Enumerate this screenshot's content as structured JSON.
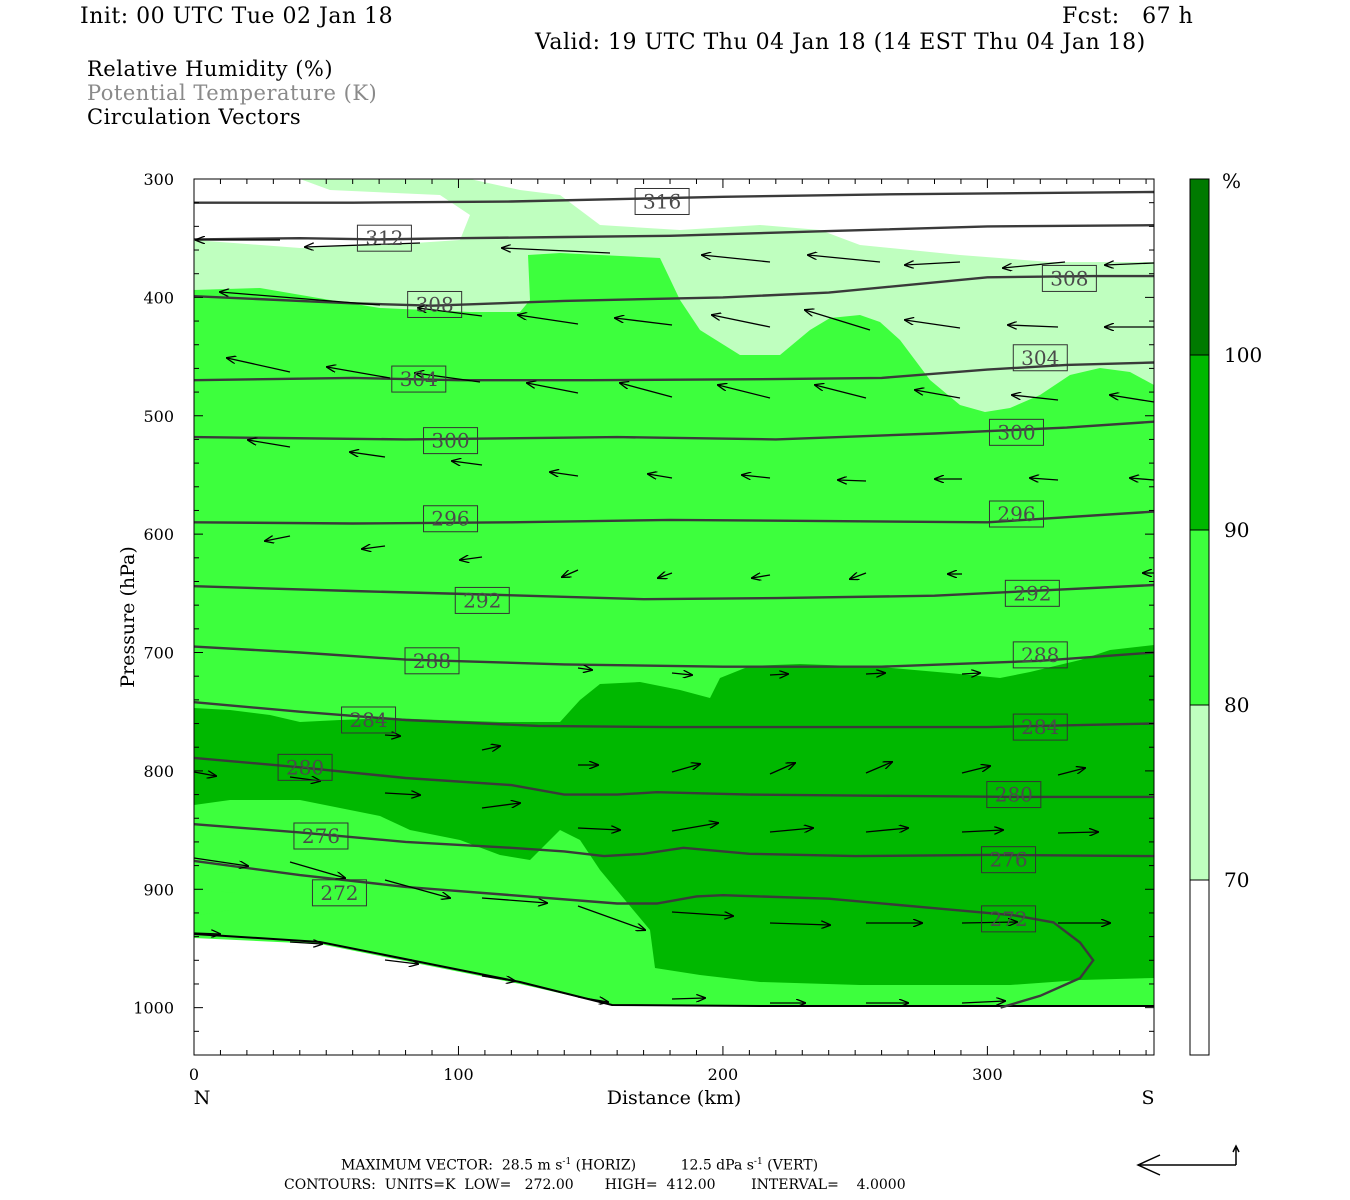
{
  "header": {
    "init": "Init: 00 UTC Tue 02 Jan 18",
    "fcst": "Fcst:   67 h",
    "valid": "Valid: 19 UTC Thu 04 Jan 18 (14 EST Thu 04 Jan 18)"
  },
  "fields": {
    "rh": "Relative Humidity (%)",
    "theta": "Potential Temperature (K)",
    "vectors": "Circulation Vectors"
  },
  "colors": {
    "rh_70_80": "#bfffbf",
    "rh_80_90": "#3dff3d",
    "rh_90_100": "#00b800",
    "rh_100": "#007a00",
    "theta_contour": "#3a3a3a",
    "theta_label_text": "#4a4a4a"
  },
  "footer": {
    "line1_prefix": "MAXIMUM VECTOR:  28.5 m s",
    "line1_exp": "-1",
    "line1_mid": " (HORIZ)          12.5 dPa s",
    "line1_exp2": "-1",
    "line1_suffix": " (VERT)",
    "line2": "CONTOURS:  UNITS=K  LOW=   272.00       HIGH=  412.00        INTERVAL=    4.0000"
  },
  "chart_data": {
    "type": "cross-section",
    "xlabel": "Distance (km)",
    "ylabel": "Pressure (hPa)",
    "xlim": [
      0,
      363
    ],
    "ylim": [
      1040,
      300
    ],
    "x_ticks": [
      0,
      100,
      200,
      300
    ],
    "y_ticks": [
      300,
      400,
      500,
      600,
      700,
      800,
      900,
      1000
    ],
    "endpoints": {
      "left": "N",
      "right": "S"
    },
    "colorbar": {
      "unit": "%",
      "levels": [
        70,
        80,
        90,
        100
      ],
      "labels": [
        "70",
        "80",
        "90",
        "100"
      ]
    },
    "theta_contours": [
      {
        "value": 272,
        "label": "272",
        "points": [
          [
            0,
            876
          ],
          [
            40,
            888
          ],
          [
            80,
            898
          ],
          [
            120,
            905
          ],
          [
            160,
            912
          ],
          [
            175,
            912
          ],
          [
            190,
            906
          ],
          [
            200,
            905
          ],
          [
            240,
            908
          ],
          [
            280,
            916
          ],
          [
            310,
            922
          ],
          [
            325,
            928
          ],
          [
            335,
            945
          ],
          [
            340,
            960
          ],
          [
            335,
            975
          ],
          [
            320,
            990
          ],
          [
            305,
            1000
          ]
        ],
        "labels_at": [
          [
            55,
            903
          ],
          [
            308,
            925
          ]
        ]
      },
      {
        "value": 276,
        "label": "276",
        "points": [
          [
            0,
            845
          ],
          [
            40,
            852
          ],
          [
            80,
            860
          ],
          [
            120,
            865
          ],
          [
            140,
            868
          ],
          [
            155,
            872
          ],
          [
            170,
            870
          ],
          [
            185,
            865
          ],
          [
            210,
            870
          ],
          [
            250,
            872
          ],
          [
            300,
            871
          ],
          [
            363,
            872
          ]
        ],
        "labels_at": [
          [
            48,
            855
          ],
          [
            308,
            875
          ]
        ]
      },
      {
        "value": 280,
        "label": "280",
        "points": [
          [
            0,
            789
          ],
          [
            40,
            797
          ],
          [
            80,
            806
          ],
          [
            120,
            812
          ],
          [
            140,
            820
          ],
          [
            160,
            820
          ],
          [
            175,
            818
          ],
          [
            210,
            820
          ],
          [
            260,
            821
          ],
          [
            310,
            822
          ],
          [
            363,
            822
          ]
        ],
        "labels_at": [
          [
            42,
            797
          ],
          [
            310,
            820
          ]
        ]
      },
      {
        "value": 284,
        "label": "284",
        "points": [
          [
            0,
            742
          ],
          [
            40,
            750
          ],
          [
            80,
            757
          ],
          [
            130,
            762
          ],
          [
            180,
            763
          ],
          [
            240,
            763
          ],
          [
            300,
            763
          ],
          [
            363,
            760
          ]
        ],
        "labels_at": [
          [
            66,
            757
          ],
          [
            320,
            763
          ]
        ]
      },
      {
        "value": 288,
        "label": "288",
        "points": [
          [
            0,
            695
          ],
          [
            40,
            700
          ],
          [
            80,
            706
          ],
          [
            140,
            710
          ],
          [
            200,
            712
          ],
          [
            260,
            712
          ],
          [
            320,
            707
          ],
          [
            363,
            700
          ]
        ],
        "labels_at": [
          [
            90,
            707
          ],
          [
            320,
            702
          ]
        ]
      },
      {
        "value": 292,
        "label": "292",
        "points": [
          [
            0,
            644
          ],
          [
            60,
            648
          ],
          [
            110,
            651
          ],
          [
            170,
            655
          ],
          [
            220,
            654
          ],
          [
            280,
            652
          ],
          [
            363,
            643
          ]
        ],
        "labels_at": [
          [
            109,
            656
          ],
          [
            317,
            650
          ]
        ]
      },
      {
        "value": 296,
        "label": "296",
        "points": [
          [
            0,
            590
          ],
          [
            60,
            591
          ],
          [
            120,
            590
          ],
          [
            180,
            588
          ],
          [
            240,
            589
          ],
          [
            300,
            590
          ],
          [
            363,
            581
          ]
        ],
        "labels_at": [
          [
            97,
            587
          ],
          [
            311,
            583
          ]
        ]
      },
      {
        "value": 300,
        "label": "300",
        "points": [
          [
            0,
            518
          ],
          [
            80,
            520
          ],
          [
            160,
            518
          ],
          [
            220,
            520
          ],
          [
            280,
            515
          ],
          [
            330,
            510
          ],
          [
            363,
            505
          ]
        ],
        "labels_at": [
          [
            97,
            521
          ],
          [
            311,
            514
          ]
        ]
      },
      {
        "value": 304,
        "label": "304",
        "points": [
          [
            0,
            470
          ],
          [
            60,
            468
          ],
          [
            100,
            470
          ],
          [
            150,
            470
          ],
          [
            220,
            469
          ],
          [
            260,
            468
          ],
          [
            300,
            461
          ],
          [
            330,
            457
          ],
          [
            363,
            455
          ]
        ],
        "labels_at": [
          [
            85,
            469
          ],
          [
            320,
            451
          ]
        ]
      },
      {
        "value": 308,
        "label": "308",
        "points": [
          [
            0,
            399
          ],
          [
            60,
            405
          ],
          [
            90,
            407
          ],
          [
            140,
            403
          ],
          [
            200,
            400
          ],
          [
            240,
            396
          ],
          [
            300,
            383
          ],
          [
            340,
            382
          ],
          [
            363,
            382
          ]
        ],
        "labels_at": [
          [
            91,
            406
          ],
          [
            331,
            384
          ]
        ]
      },
      {
        "value": 312,
        "label": "312",
        "points": [
          [
            0,
            351
          ],
          [
            40,
            350
          ],
          [
            70,
            351
          ],
          [
            100,
            350
          ],
          [
            140,
            349
          ],
          [
            180,
            348
          ],
          [
            240,
            344
          ],
          [
            300,
            340
          ],
          [
            363,
            339
          ]
        ],
        "labels_at": [
          [
            72,
            350
          ]
        ]
      },
      {
        "value": 316,
        "label": "316",
        "points": [
          [
            0,
            320
          ],
          [
            60,
            320
          ],
          [
            120,
            319
          ],
          [
            200,
            315
          ],
          [
            260,
            313
          ],
          [
            363,
            311
          ]
        ],
        "labels_at": [
          [
            177,
            319
          ]
        ]
      }
    ]
  }
}
